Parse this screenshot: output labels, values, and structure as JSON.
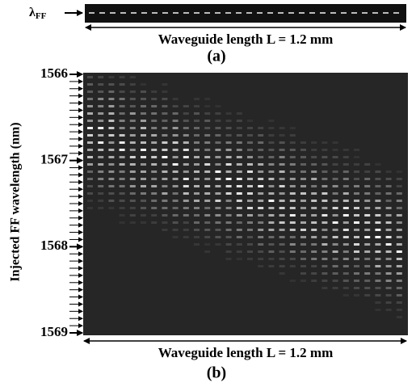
{
  "panel_a": {
    "label_symbol": "λ",
    "label_subscript": "FF",
    "axis_label": "Waveguide length L = 1.2 mm",
    "caption": "(a)"
  },
  "panel_b": {
    "y_axis_label": "Injected FF wavelength (nm)",
    "yticks": [
      1566,
      1567,
      1568,
      1569
    ],
    "axis_label": "Waveguide length L = 1.2 mm",
    "caption": "(b)"
  }
}
